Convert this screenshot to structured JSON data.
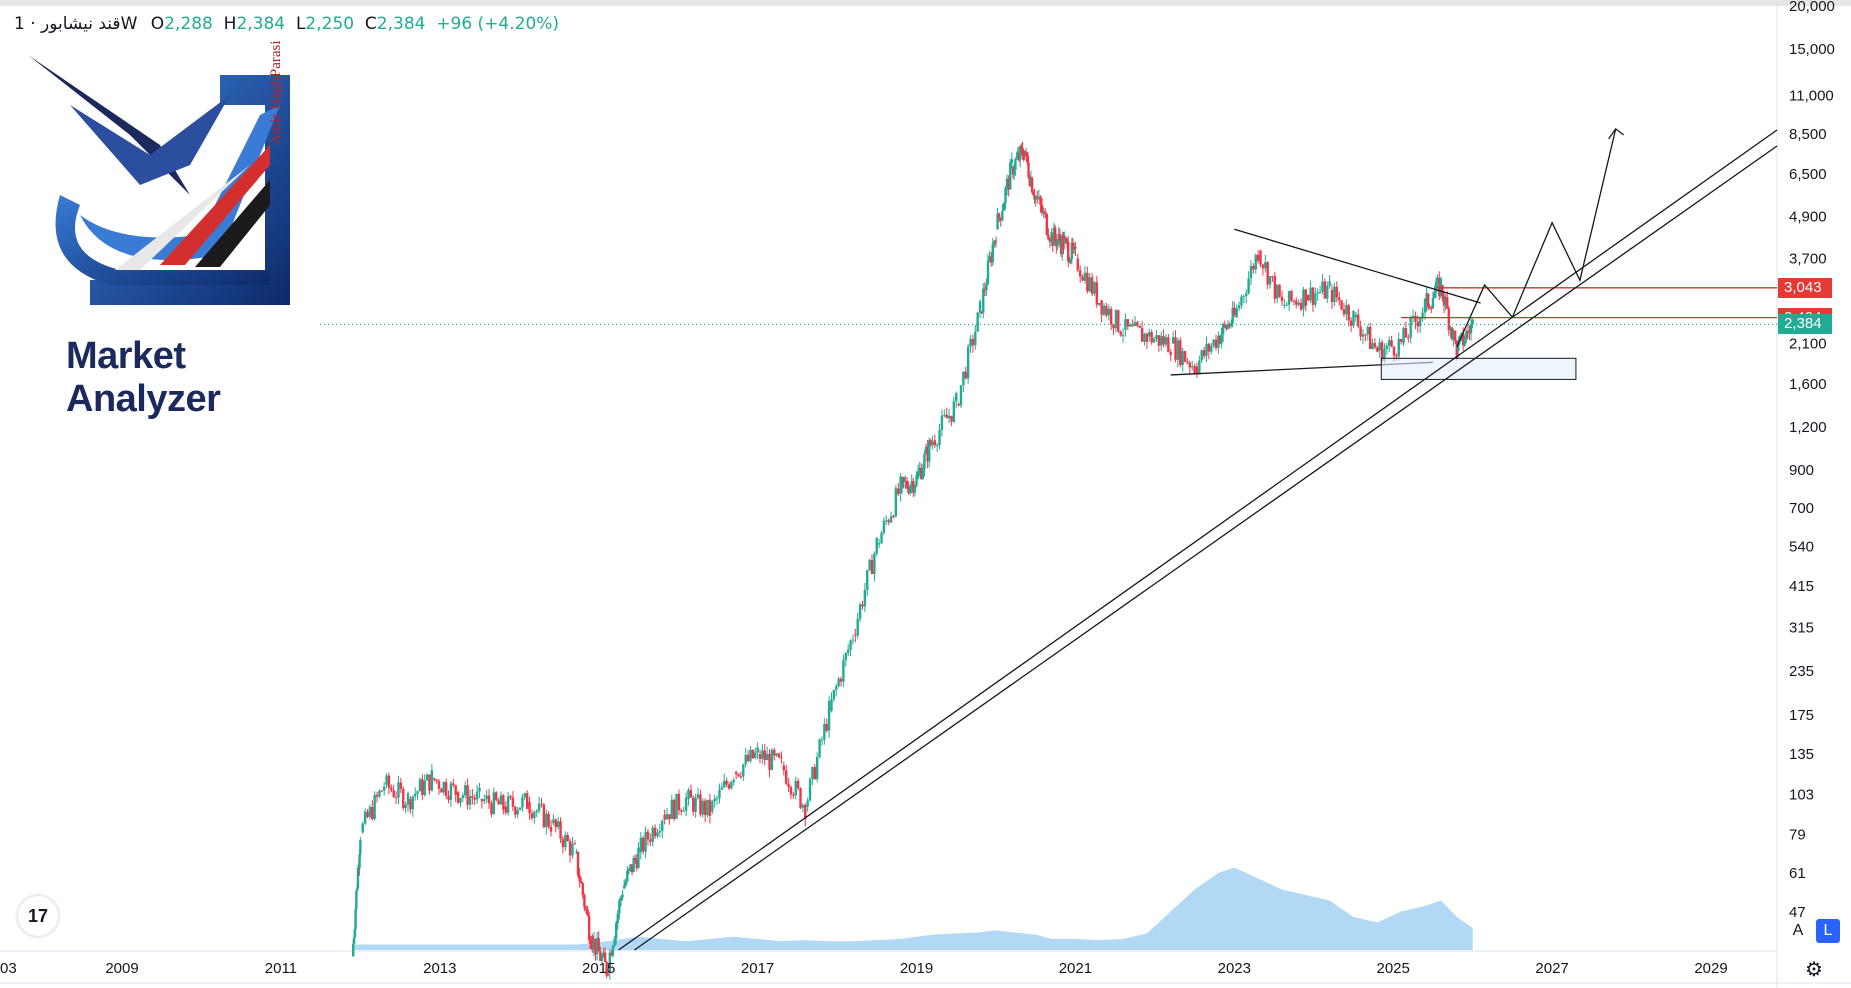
{
  "legend": {
    "symbol": "قند نیشابور · 1W",
    "o_label": "O",
    "o": "2,288",
    "h_label": "H",
    "h": "2,384",
    "l_label": "L",
    "l": "2,250",
    "c_label": "C",
    "c": "2,384",
    "change": "+96 (+4.20%)"
  },
  "logo": {
    "text": "Market Analyzer",
    "signature": "Amir HaghParasi"
  },
  "colors": {
    "up": "#22ab94",
    "down": "#f23645",
    "volume": "#90c8f0",
    "level": "#d32f2f",
    "current": "#22ab94"
  },
  "buttons": {
    "auto": "A",
    "log": "L",
    "settings_icon": "gear-icon",
    "tv_logo": "tradingview-logo-icon",
    "tv_text": "17"
  },
  "price_badges": [
    {
      "value": "3,043",
      "color": "#e53935"
    },
    {
      "value": "2,494",
      "color": "#e53935"
    },
    {
      "value": "2,384",
      "color": "#22ab94"
    }
  ],
  "chart_data": {
    "type": "line",
    "scale": "log",
    "interval": "1W",
    "y_ticks": [
      "20,000",
      "15,000",
      "11,000",
      "8,500",
      "6,500",
      "4,900",
      "3,700",
      "2,100",
      "1,600",
      "1,200",
      "900",
      "700",
      "540",
      "415",
      "315",
      "235",
      "175",
      "135",
      "103",
      "79",
      "61",
      "47"
    ],
    "x_ticks": [
      "2009",
      "2011",
      "2013",
      "2015",
      "2017",
      "2019",
      "2021",
      "2023",
      "2025",
      "2027",
      "2029"
    ],
    "x_tick_left_partial": "03",
    "x": [
      2011.9,
      2012.0,
      2012.3,
      2012.6,
      2012.9,
      2013.2,
      2013.5,
      2013.8,
      2014.1,
      2014.4,
      2014.7,
      2014.9,
      2015.1,
      2015.3,
      2015.5,
      2015.8,
      2016.1,
      2016.4,
      2016.7,
      2017.0,
      2017.3,
      2017.6,
      2017.9,
      2018.2,
      2018.5,
      2018.8,
      2019.0,
      2019.2,
      2019.5,
      2019.8,
      2020.0,
      2020.2,
      2020.35,
      2020.5,
      2020.7,
      2020.85,
      2021.0,
      2021.3,
      2021.6,
      2021.9,
      2022.2,
      2022.5,
      2022.8,
      2023.0,
      2023.3,
      2023.6,
      2023.9,
      2024.2,
      2024.5,
      2024.8,
      2025.1,
      2025.4,
      2025.6,
      2025.8,
      2026.0
    ],
    "close": [
      35,
      80,
      110,
      100,
      115,
      105,
      100,
      95,
      98,
      85,
      70,
      40,
      32,
      55,
      70,
      90,
      100,
      92,
      120,
      135,
      125,
      95,
      180,
      300,
      550,
      800,
      850,
      1100,
      1400,
      2600,
      4500,
      6800,
      7600,
      5600,
      4300,
      4100,
      3700,
      2800,
      2300,
      2200,
      2100,
      1800,
      2200,
      2500,
      3900,
      2700,
      2900,
      3000,
      2500,
      2000,
      2100,
      2700,
      3100,
      2000,
      2384
    ],
    "volume_shape": [
      0.05,
      0.05,
      0.05,
      0.05,
      0.05,
      0.05,
      0.05,
      0.05,
      0.05,
      0.05,
      0.05,
      0.06,
      0.08,
      0.1,
      0.12,
      0.1,
      0.08,
      0.1,
      0.12,
      0.1,
      0.08,
      0.09,
      0.08,
      0.08,
      0.09,
      0.1,
      0.12,
      0.14,
      0.15,
      0.16,
      0.18,
      0.16,
      0.15,
      0.14,
      0.1,
      0.1,
      0.1,
      0.09,
      0.1,
      0.15,
      0.35,
      0.55,
      0.7,
      0.75,
      0.65,
      0.55,
      0.5,
      0.45,
      0.3,
      0.25,
      0.35,
      0.4,
      0.45,
      0.3,
      0.2
    ],
    "annotations": {
      "levels": [
        3043,
        2494
      ],
      "current_price": 2384,
      "triangle_upper": [
        [
          2023.0,
          4500
        ],
        [
          2026.1,
          2750
        ]
      ],
      "triangle_lower": [
        [
          2022.2,
          1700
        ],
        [
          2025.5,
          1850
        ]
      ],
      "support_zone": [
        1650,
        1900
      ],
      "trendlines": "two parallel rising lines from 2015 low",
      "projection": "zigzag arrow upward to ~8,800"
    }
  }
}
